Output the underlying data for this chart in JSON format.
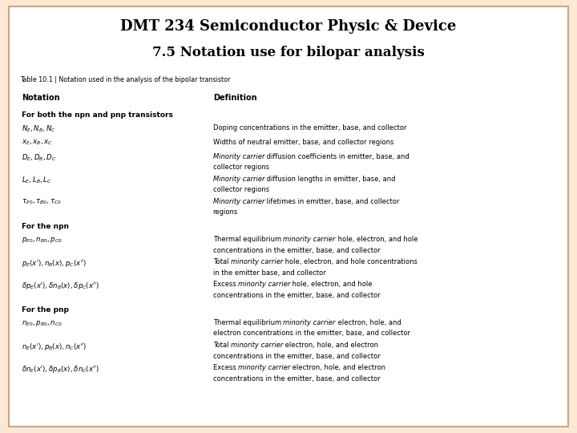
{
  "title1": "DMT 234 Semiconductor Physic & Device",
  "title2": "7.5 Notation use for bilopar analysis",
  "table_caption": "Table 10.1 | Notation used in the analysis of the bipolar transistor",
  "col_headers": [
    "Notation",
    "Definition"
  ],
  "background_color": "#fce8d5",
  "inner_bg": "#ffffff",
  "border_color": "#c8a882",
  "rows": [
    {
      "section": "For both the npn and pnp transistors"
    },
    {
      "notation": "$N_E, N_B, N_C$",
      "definition": "Doping concentrations in the emitter, base, and collector",
      "double": false
    },
    {
      "notation": "$x_E, x_B, x_C$",
      "definition": "Widths of neutral emitter, base, and collector regions",
      "double": false
    },
    {
      "notation": "$D_E, D_B, D_C$",
      "definition": "Minority carrier diffusion coefficients in emitter, base, and\ncollector regions",
      "double": true
    },
    {
      "notation": "$L_E, L_B, L_C$",
      "definition": "Minority carrier diffusion lengths in emitter, base, and\ncollector regions",
      "double": true
    },
    {
      "notation": "$\\tau_{E0}, \\tau_{B0}, \\tau_{C0}$",
      "definition": "Minority carrier lifetimes in emitter, base, and collector\nregions",
      "double": true
    },
    {
      "section": "For the npn"
    },
    {
      "notation": "$p_{E0}, n_{B0}, p_{C0}$",
      "definition": "Thermal equilibrium minority carrier hole, electron, and hole\nconcentrations in the emitter, base, and collector",
      "double": true
    },
    {
      "notation": "$p_E(x'), n_B(x), p_C(x'')$",
      "definition": "Total minority carrier hole, electron, and hole concentrations\nin the emitter base, and collector",
      "double": true
    },
    {
      "notation": "$\\delta p_E(x'), \\delta n_B(x), \\delta p_C(x'')$",
      "definition": "Excess minority carrier hole, electron, and hole\nconcentrations in the emitter, base, and collector",
      "double": true
    },
    {
      "section": "For the pnp"
    },
    {
      "notation": "$n_{E0}, p_{B0}, n_{C0}$",
      "definition": "Thermal equilibrium minority carrier electron, hole, and\nelectron concentrations in the emitter, base, and collector",
      "double": true
    },
    {
      "notation": "$n_E(x'), p_B(x), n_C(x'')$",
      "definition": "Total minority carrier electron, hole, and electron\nconcentrations in the emitter, base, and collector",
      "double": true
    },
    {
      "notation": "$\\delta n_E(x'), \\delta p_B(x), \\delta n_C(x'')$",
      "definition": "Excess minority carrier electron, hole, and electron\nconcentrations in the emitter, base, and collector",
      "double": true
    }
  ]
}
